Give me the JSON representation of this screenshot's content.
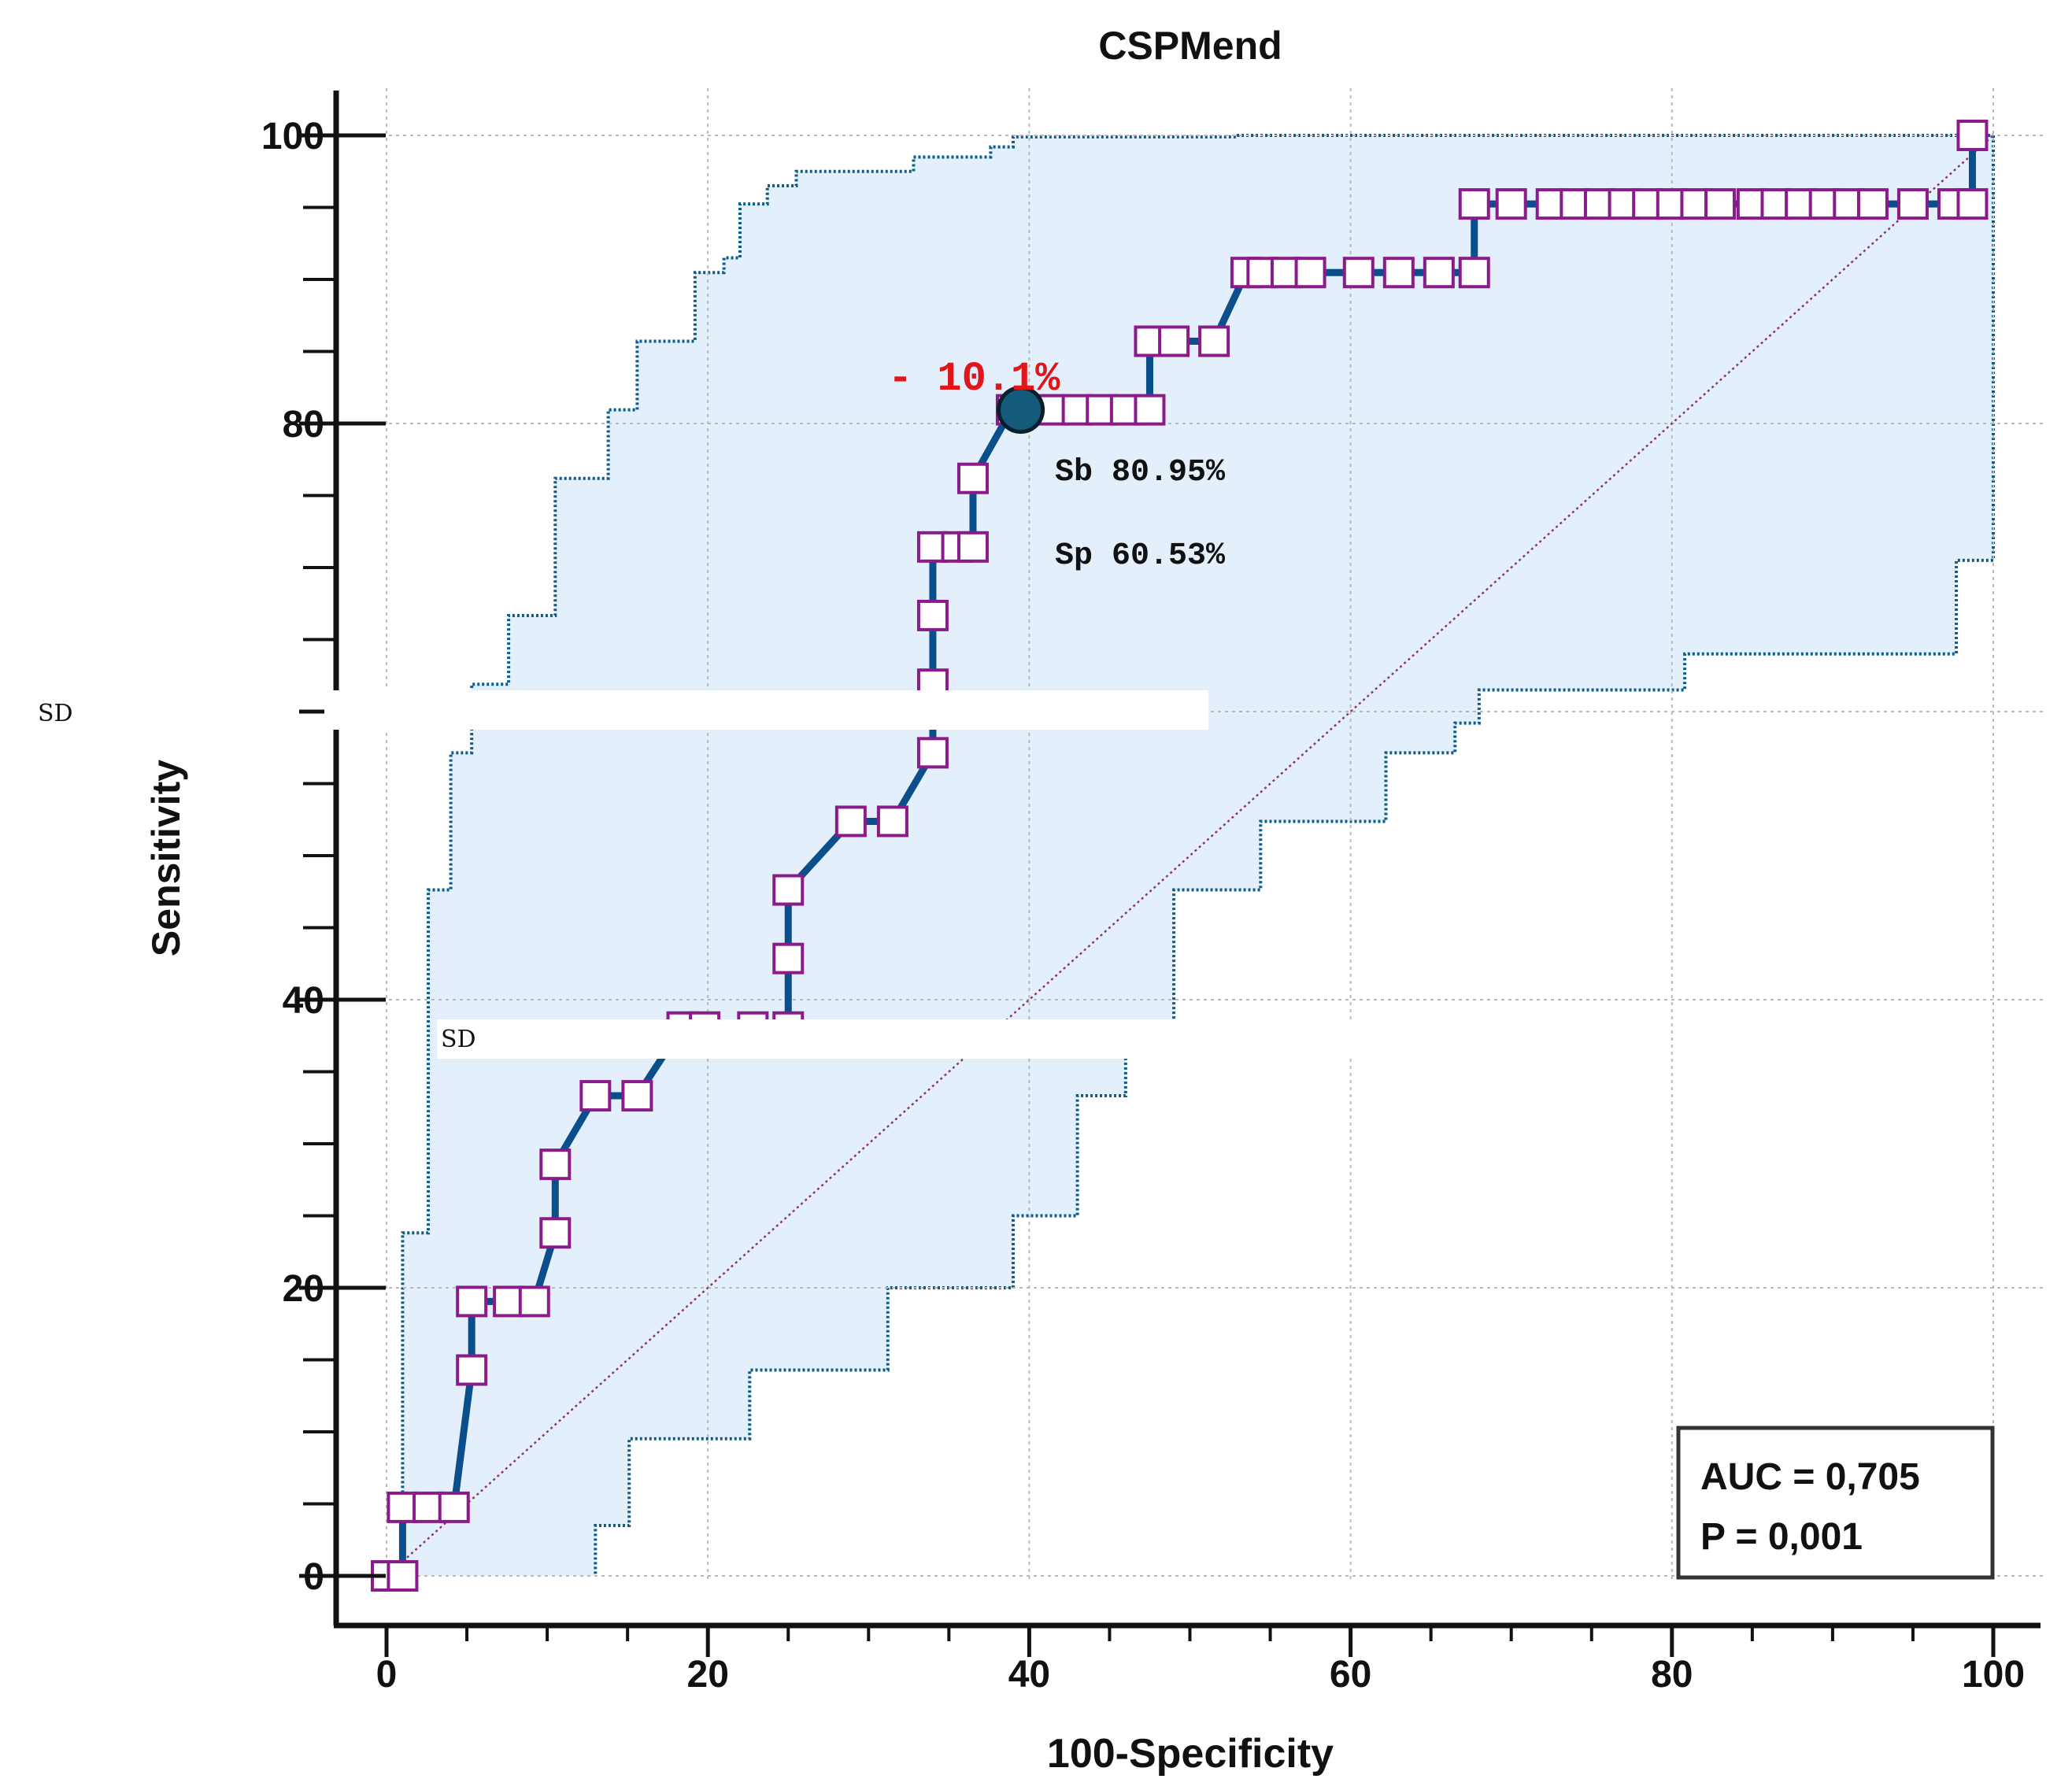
{
  "chart_data": {
    "type": "line",
    "title": "CSPMend",
    "xlabel": "100-Specificity",
    "ylabel": "Sensitivity",
    "xlim": [
      0,
      100
    ],
    "ylim": [
      0,
      100
    ],
    "x_ticks": [
      0,
      20,
      40,
      60,
      80,
      100
    ],
    "y_ticks": [
      0,
      20,
      40,
      80,
      100
    ],
    "x_tick_labels": [
      "0",
      "20",
      "40",
      "60",
      "80",
      "100"
    ],
    "y_tick_labels": [
      "0",
      "20",
      "40",
      "80",
      "100"
    ],
    "grid": true,
    "series": [
      {
        "name": "ROC curve",
        "color": "#0a4f8c",
        "marker_color": "#8b1a8b",
        "x": [
          0,
          1,
          1,
          2.6,
          4.2,
          5.3,
          5.3,
          7.6,
          9.2,
          10.5,
          10.5,
          13,
          15.6,
          18.4,
          19.8,
          22.8,
          25,
          25,
          25,
          28.9,
          31.5,
          34,
          34,
          34,
          34,
          35.5,
          36.5,
          36.5,
          38.9,
          41.5,
          43,
          44.5,
          46,
          47.5,
          47.5,
          49,
          51.5,
          53.5,
          54.5,
          56,
          57.5,
          60.5,
          63,
          65.5,
          67.7,
          67.7,
          70,
          72.5,
          74,
          75.5,
          77,
          78.5,
          80,
          81.5,
          83,
          85,
          86.5,
          88,
          89.5,
          91,
          92.5,
          95,
          97.5,
          98.7,
          98.7
        ],
        "y": [
          0,
          0,
          4.76,
          4.76,
          4.76,
          14.29,
          19.05,
          19.05,
          19.05,
          23.81,
          28.57,
          33.33,
          33.33,
          38.1,
          38.1,
          38.1,
          38.1,
          42.86,
          47.62,
          52.38,
          52.38,
          57.14,
          61.9,
          66.67,
          71.43,
          71.43,
          71.43,
          76.19,
          80.95,
          80.95,
          80.95,
          80.95,
          80.95,
          80.95,
          85.71,
          85.71,
          85.71,
          90.48,
          90.48,
          90.48,
          90.48,
          90.48,
          90.48,
          90.48,
          90.48,
          95.24,
          95.24,
          95.24,
          95.24,
          95.24,
          95.24,
          95.24,
          95.24,
          95.24,
          95.24,
          95.24,
          95.24,
          95.24,
          95.24,
          95.24,
          95.24,
          95.24,
          95.24,
          95.24,
          100
        ]
      },
      {
        "name": "95% CI upper",
        "x": [
          0,
          1,
          1,
          2.6,
          2.6,
          4,
          4,
          5.3,
          5.3,
          7.6,
          7.6,
          10.5,
          10.5,
          13.8,
          13.8,
          15.6,
          15.6,
          19.2,
          19.2,
          21,
          21,
          22,
          22,
          23.7,
          23.7,
          25.5,
          25.5,
          32.8,
          32.8,
          37.6,
          37.6,
          39,
          39,
          53,
          53,
          100,
          100
        ],
        "y": [
          0,
          0,
          23.81,
          23.81,
          47.62,
          47.62,
          57.14,
          57.14,
          61.9,
          61.9,
          66.67,
          66.67,
          76.19,
          76.19,
          80.95,
          80.95,
          85.71,
          85.71,
          90.48,
          90.48,
          91.5,
          91.5,
          95.24,
          95.24,
          96.5,
          96.5,
          97.5,
          97.5,
          98.5,
          98.5,
          99.2,
          99.2,
          99.9,
          99.9,
          100,
          100,
          100
        ]
      },
      {
        "name": "95% CI lower",
        "x": [
          100,
          100,
          97.7,
          97.7,
          80.8,
          80.8,
          68,
          68,
          66.5,
          66.5,
          62.2,
          62.2,
          54.4,
          54.4,
          49,
          49,
          46,
          46,
          43,
          43,
          39,
          39,
          31.2,
          31.2,
          22.6,
          22.6,
          15.1,
          15.1,
          13,
          13
        ],
        "y": [
          100,
          70.5,
          70.5,
          64,
          64,
          61.5,
          61.5,
          59.2,
          59.2,
          57.14,
          57.14,
          52.38,
          52.38,
          47.62,
          47.62,
          38.1,
          38.1,
          33.33,
          33.33,
          25,
          25,
          20,
          20,
          14.29,
          14.29,
          9.52,
          9.52,
          3.5,
          3.5,
          0
        ]
      },
      {
        "name": "Reference line",
        "x": [
          0,
          100
        ],
        "y": [
          0,
          100
        ]
      }
    ],
    "optimal_point": {
      "x": 39.47,
      "y": 80.95
    },
    "annotations": {
      "criterion": "- 10.1%",
      "sensitivity": "Sb 80.95%",
      "specificity": "Sp 60.53%",
      "auc": "AUC = 0,705",
      "p_value": "P = 0,001",
      "sd_upper": "SD",
      "sd_lower": "SD"
    },
    "legend_position": "bottom-right"
  },
  "colors": {
    "ci_fill": "#e3effb",
    "ci_border": "#0b5d8c",
    "curve": "#0a4f8c",
    "marker_border": "#8b1a8b",
    "optimal_point": "#145a7a",
    "criterion_text": "#e0161b",
    "reference_line": "#8b3a6b",
    "axis": "#111111",
    "grid": "#b9b9b9"
  }
}
